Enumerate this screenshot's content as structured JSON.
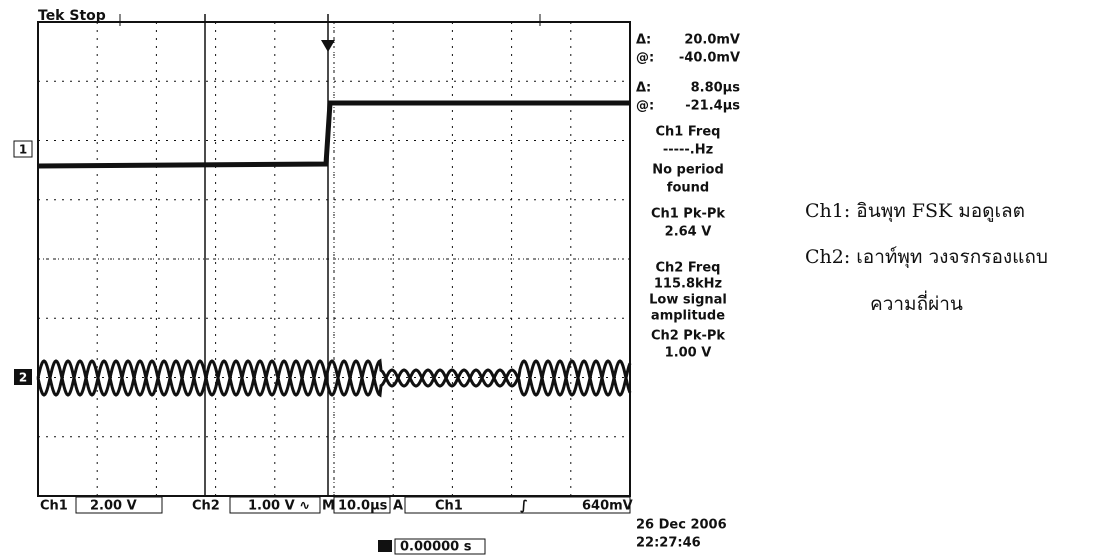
{
  "scope": {
    "status": "Tek Stop",
    "readouts": [
      "Δ:",
      "20.0mV",
      "@:",
      "-40.0mV",
      "Δ:",
      "8.80µs",
      "@:",
      "-21.4µs"
    ],
    "measurements": [
      "Ch1 Freq",
      "-----.Hz",
      "No period",
      "found",
      "Ch1 Pk-Pk",
      "2.64 V",
      "Ch2 Freq",
      "115.8kHz",
      "Low signal",
      "amplitude",
      "Ch2 Pk-Pk",
      "1.00 V"
    ],
    "channel_markers": [
      "1",
      "2"
    ],
    "status_bar": [
      "Ch1",
      "2.00 V",
      "Ch2",
      "1.00 V ∿",
      "M",
      "10.0µs",
      "A",
      "Ch1",
      "∫",
      "640mV"
    ],
    "trigger_position": "0.00000 s",
    "date": "26 Dec 2006",
    "time": "22:27:46"
  },
  "legend": [
    "Ch1: อินพุท FSK มอดูเลต",
    "Ch2: เอาท์พุท วงจรกรองแถบ",
    "ความถี่ผ่าน"
  ]
}
